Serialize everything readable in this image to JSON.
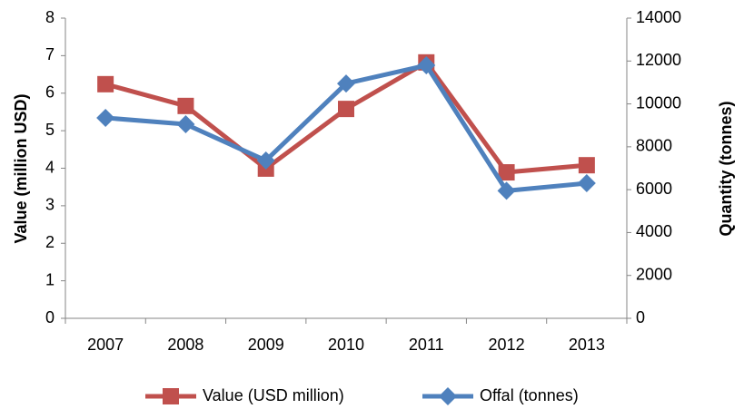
{
  "chart_data": {
    "type": "line",
    "categories": [
      "2007",
      "2008",
      "2009",
      "2010",
      "2011",
      "2012",
      "2013"
    ],
    "ylabel": "Value (million USD)",
    "y2label": "Quantity (tonnes)",
    "ylim": [
      0,
      8
    ],
    "yticks": [
      0,
      1,
      2,
      3,
      4,
      5,
      6,
      7,
      8
    ],
    "y2lim": [
      0,
      14000
    ],
    "y2ticks": [
      0,
      2000,
      4000,
      6000,
      8000,
      10000,
      12000,
      14000
    ],
    "legend": "bottom",
    "series": [
      {
        "name": "Value (USD million)",
        "color": "#c0504d",
        "marker": "square",
        "values": [
          6.24,
          5.66,
          3.99,
          5.58,
          6.82,
          3.89,
          4.08
        ]
      },
      {
        "name": "Offal (tonnes)",
        "color": "#4f81bd",
        "marker": "diamond",
        "axis": "y2",
        "values": [
          9350,
          9050,
          7360,
          10950,
          11800,
          5950,
          6300
        ]
      }
    ]
  }
}
